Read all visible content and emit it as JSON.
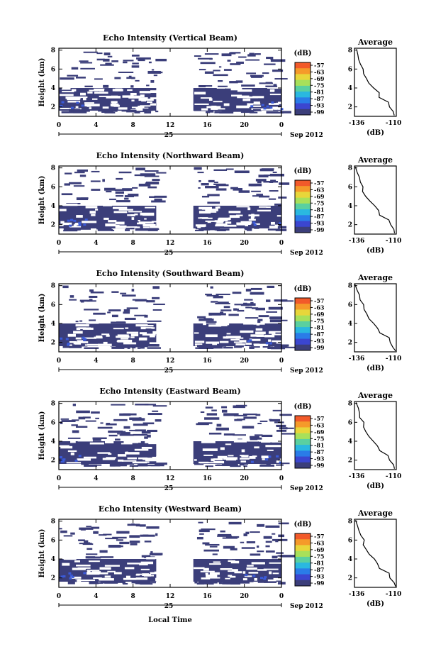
{
  "figure": {
    "footer_label": "Local Time",
    "date_label": "Sep 2012",
    "day_label": "25"
  },
  "chart_data": [
    {
      "type": "heatmap",
      "title": "Echo Intensity (Vertical Beam)",
      "xlabel": "",
      "ylabel": "Height (km)",
      "x_ticks": [
        "0",
        "4",
        "8",
        "12",
        "16",
        "20",
        "0"
      ],
      "y_ticks": [
        "2",
        "4",
        "6",
        "8"
      ],
      "xlim": [
        0,
        24
      ],
      "ylim": [
        1,
        8.2
      ],
      "colorbar": {
        "label": "(dB)",
        "ticks": [
          "-57",
          "-63",
          "-69",
          "-75",
          "-81",
          "-87",
          "-93",
          "-99"
        ]
      },
      "no_data_hours": [
        10.5,
        14.5
      ],
      "average_profile": {
        "title": "Average",
        "xlabel": "(dB)",
        "x_ticks": [
          "-136",
          "-110"
        ],
        "y_ticks": [
          "2",
          "4",
          "6",
          "8"
        ]
      }
    },
    {
      "type": "heatmap",
      "title": "Echo Intensity (Northward Beam)",
      "xlabel": "",
      "ylabel": "Height (km)",
      "x_ticks": [
        "0",
        "4",
        "8",
        "12",
        "16",
        "20",
        "0"
      ],
      "y_ticks": [
        "2",
        "4",
        "6",
        "8"
      ],
      "xlim": [
        0,
        24
      ],
      "ylim": [
        1,
        8.2
      ],
      "colorbar": {
        "label": "(dB)",
        "ticks": [
          "-57",
          "-63",
          "-69",
          "-75",
          "-81",
          "-87",
          "-93",
          "-99"
        ]
      },
      "no_data_hours": [
        10.5,
        14.5
      ],
      "average_profile": {
        "title": "Average",
        "xlabel": "(dB)",
        "x_ticks": [
          "-136",
          "-110"
        ],
        "y_ticks": [
          "2",
          "4",
          "6",
          "8"
        ]
      }
    },
    {
      "type": "heatmap",
      "title": "Echo Intensity (Southward Beam)",
      "xlabel": "",
      "ylabel": "Height (km)",
      "x_ticks": [
        "0",
        "4",
        "8",
        "12",
        "16",
        "20",
        "0"
      ],
      "y_ticks": [
        "2",
        "4",
        "6",
        "8"
      ],
      "xlim": [
        0,
        24
      ],
      "ylim": [
        1,
        8.2
      ],
      "colorbar": {
        "label": "(dB)",
        "ticks": [
          "-57",
          "-63",
          "-69",
          "-75",
          "-81",
          "-87",
          "-93",
          "-99"
        ]
      },
      "no_data_hours": [
        10.5,
        14.5
      ],
      "average_profile": {
        "title": "Average",
        "xlabel": "(dB)",
        "x_ticks": [
          "-136",
          "-110"
        ],
        "y_ticks": [
          "2",
          "4",
          "6",
          "8"
        ]
      }
    },
    {
      "type": "heatmap",
      "title": "Echo Intensity (Eastward Beam)",
      "xlabel": "",
      "ylabel": "Height (km)",
      "x_ticks": [
        "0",
        "4",
        "8",
        "12",
        "16",
        "20",
        "0"
      ],
      "y_ticks": [
        "2",
        "4",
        "6",
        "8"
      ],
      "xlim": [
        0,
        24
      ],
      "ylim": [
        1,
        8.2
      ],
      "colorbar": {
        "label": "(dB)",
        "ticks": [
          "-57",
          "-63",
          "-69",
          "-75",
          "-81",
          "-87",
          "-93",
          "-99"
        ]
      },
      "no_data_hours": [
        10.5,
        14.5
      ],
      "average_profile": {
        "title": "Average",
        "xlabel": "(dB)",
        "x_ticks": [
          "-136",
          "-110"
        ],
        "y_ticks": [
          "2",
          "4",
          "6",
          "8"
        ]
      }
    },
    {
      "type": "heatmap",
      "title": "Echo Intensity (Westward Beam)",
      "xlabel": "",
      "ylabel": "Height (km)",
      "x_ticks": [
        "0",
        "4",
        "8",
        "12",
        "16",
        "20",
        "0"
      ],
      "y_ticks": [
        "2",
        "4",
        "6",
        "8"
      ],
      "xlim": [
        0,
        24
      ],
      "ylim": [
        1,
        8.2
      ],
      "colorbar": {
        "label": "(dB)",
        "ticks": [
          "-57",
          "-63",
          "-69",
          "-75",
          "-81",
          "-87",
          "-93",
          "-99"
        ]
      },
      "no_data_hours": [
        10.5,
        14.5
      ],
      "average_profile": {
        "title": "Average",
        "xlabel": "(dB)",
        "x_ticks": [
          "-136",
          "-110"
        ],
        "y_ticks": [
          "2",
          "4",
          "6",
          "8"
        ]
      }
    }
  ],
  "colors": {
    "background_echo": "#3b3e7a",
    "axis": "#000000",
    "colorbar": [
      "#f25a2a",
      "#f59a2a",
      "#e8d63a",
      "#a8e05a",
      "#5ad0a0",
      "#2ab8e0",
      "#2a7ce8",
      "#3b46d0",
      "#3b3e7a"
    ]
  }
}
